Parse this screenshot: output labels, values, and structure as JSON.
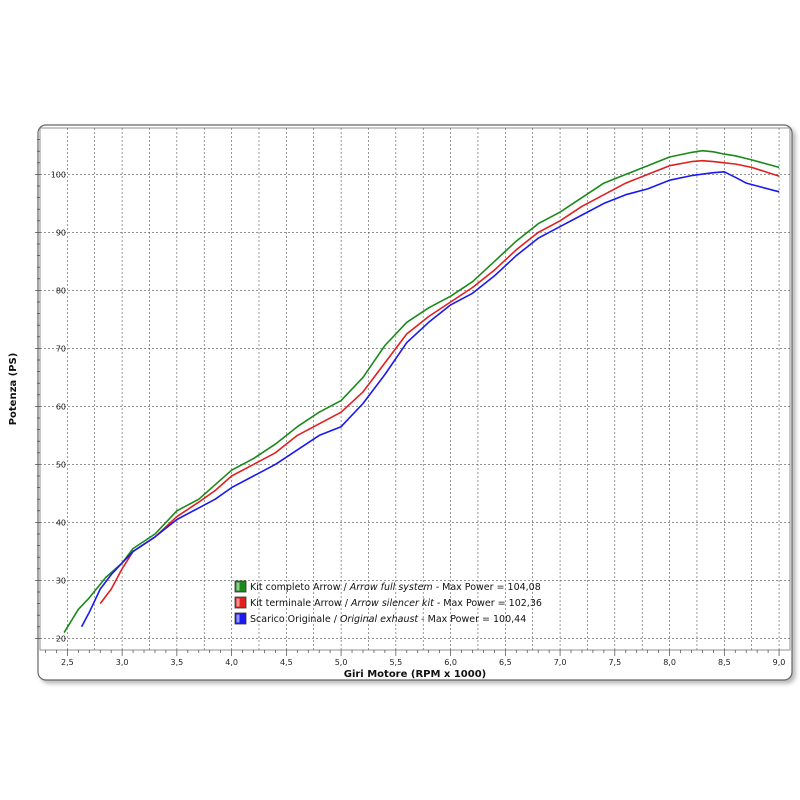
{
  "chart_data": {
    "type": "line",
    "xlabel": "Giri Motore (RPM x 1000)",
    "ylabel": "Potenza (PS)",
    "xlim": [
      2.25,
      9.1
    ],
    "ylim": [
      18,
      108
    ],
    "x_ticks": [
      "2,5",
      "3,0",
      "3,5",
      "4,0",
      "4,5",
      "5,0",
      "5,5",
      "6,0",
      "6,5",
      "7,0",
      "7,5",
      "8,0",
      "8,5",
      "9,0"
    ],
    "y_ticks": [
      "20",
      "30",
      "40",
      "50",
      "60",
      "70",
      "80",
      "90",
      "100"
    ],
    "grid": true,
    "legend_position": "lower-middle",
    "series": [
      {
        "name": "Kit completo Arrow",
        "name_en": "Arrow full system",
        "max_label": "Max Power = 104,08",
        "color": "#1a8a1a",
        "x": [
          2.47,
          2.6,
          2.7,
          2.85,
          3.0,
          3.1,
          3.3,
          3.5,
          3.7,
          3.85,
          4.0,
          4.2,
          4.4,
          4.6,
          4.8,
          5.0,
          5.2,
          5.4,
          5.6,
          5.8,
          6.0,
          6.2,
          6.4,
          6.6,
          6.8,
          7.0,
          7.2,
          7.4,
          7.6,
          7.8,
          8.0,
          8.2,
          8.3,
          8.4,
          8.5,
          8.6,
          8.75,
          9.0
        ],
        "y": [
          21.0,
          25.0,
          27.0,
          30.5,
          33.0,
          35.5,
          38.0,
          42.0,
          44.0,
          46.5,
          49.0,
          51.0,
          53.5,
          56.5,
          59.0,
          61.0,
          65.0,
          70.5,
          74.5,
          77.0,
          79.0,
          81.5,
          85.0,
          88.5,
          91.5,
          93.5,
          96.0,
          98.5,
          100.0,
          101.5,
          103.0,
          103.8,
          104.08,
          103.9,
          103.5,
          103.2,
          102.5,
          101.2
        ]
      },
      {
        "name": "Kit terminale Arrow",
        "name_en": "Arrow silencer kit",
        "max_label": "Max Power = 102,36",
        "color": "#e02020",
        "x": [
          2.8,
          2.9,
          3.0,
          3.1,
          3.3,
          3.5,
          3.7,
          3.85,
          4.0,
          4.2,
          4.4,
          4.6,
          4.8,
          5.0,
          5.2,
          5.4,
          5.6,
          5.8,
          6.0,
          6.2,
          6.4,
          6.6,
          6.8,
          7.0,
          7.2,
          7.4,
          7.6,
          7.8,
          8.0,
          8.2,
          8.3,
          8.4,
          8.5,
          8.6,
          8.75,
          9.0
        ],
        "y": [
          26.0,
          28.5,
          32.0,
          35.0,
          37.5,
          41.0,
          43.5,
          45.5,
          48.0,
          50.0,
          52.0,
          55.0,
          57.0,
          59.0,
          62.5,
          67.5,
          72.5,
          75.5,
          78.0,
          80.5,
          83.5,
          87.0,
          90.0,
          92.0,
          94.5,
          96.5,
          98.5,
          100.0,
          101.5,
          102.2,
          102.36,
          102.2,
          102.0,
          101.8,
          101.2,
          99.7
        ]
      },
      {
        "name": "Scarico Originale",
        "name_en": "Original exhaust",
        "max_label": "Max Power = 100,44",
        "color": "#1a1aee",
        "x": [
          2.63,
          2.7,
          2.8,
          2.9,
          3.0,
          3.1,
          3.3,
          3.5,
          3.7,
          3.85,
          4.0,
          4.2,
          4.4,
          4.6,
          4.8,
          5.0,
          5.2,
          5.4,
          5.6,
          5.8,
          6.0,
          6.2,
          6.4,
          6.6,
          6.8,
          7.0,
          7.2,
          7.4,
          7.6,
          7.8,
          8.0,
          8.2,
          8.4,
          8.5,
          8.6,
          8.7,
          8.8,
          9.0
        ],
        "y": [
          22.0,
          24.5,
          28.5,
          31.0,
          33.0,
          35.0,
          37.5,
          40.5,
          42.5,
          44.0,
          46.0,
          48.0,
          50.0,
          52.5,
          55.0,
          56.5,
          60.5,
          65.5,
          71.0,
          74.5,
          77.5,
          79.5,
          82.5,
          86.0,
          89.0,
          91.0,
          93.0,
          95.0,
          96.5,
          97.5,
          99.0,
          99.8,
          100.3,
          100.44,
          99.5,
          98.5,
          98.0,
          97.0
        ]
      }
    ]
  },
  "legend": [
    {
      "name": "Kit completo Arrow",
      "sep": " / ",
      "name_en": "Arrow full system",
      "max_label": " - Max Power = 104,08",
      "color": "#1a8a1a"
    },
    {
      "name": "Kit terminale Arrow",
      "sep": " / ",
      "name_en": "Arrow silencer kit",
      "max_label": " - Max Power = 102,36",
      "color": "#e02020"
    },
    {
      "name": "Scarico Originale",
      "sep": " / ",
      "name_en": "Original exhaust",
      "max_label": " - Max Power = 100,44",
      "color": "#1a1aee"
    }
  ]
}
